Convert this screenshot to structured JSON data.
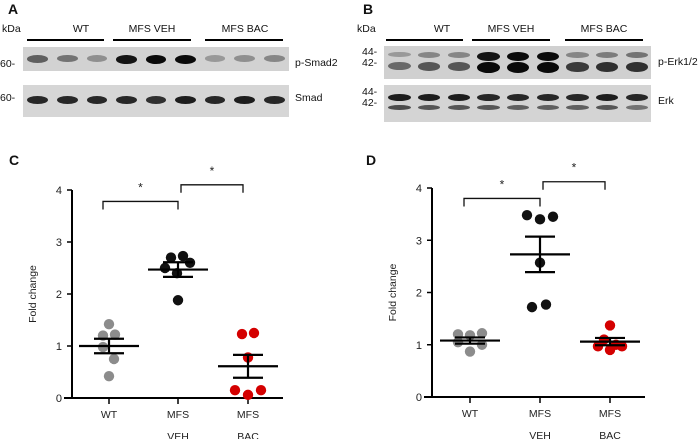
{
  "panels": {
    "A": {
      "letter": "A",
      "kda_label": "kDa",
      "groups": [
        "WT",
        "MFS VEH",
        "MFS BAC"
      ],
      "blots": [
        {
          "marker": "60-",
          "label": "p-Smad2",
          "lane_intensity": [
            0.55,
            0.45,
            0.3,
            0.95,
            1.0,
            1.0,
            0.25,
            0.3,
            0.35
          ]
        },
        {
          "marker": "60-",
          "label": "Smad",
          "lane_intensity": [
            0.85,
            0.85,
            0.85,
            0.85,
            0.8,
            0.9,
            0.85,
            0.9,
            0.85
          ]
        }
      ]
    },
    "B": {
      "letter": "B",
      "kda_label": "kDa",
      "groups": [
        "WT",
        "MFS VEH",
        "MFS BAC"
      ],
      "blots": [
        {
          "markers": [
            "44-",
            "42-"
          ],
          "label": "p-Erk1/2",
          "upper_intensity": [
            0.25,
            0.35,
            0.35,
            0.95,
            1.0,
            1.0,
            0.35,
            0.4,
            0.45
          ],
          "lower_intensity": [
            0.5,
            0.6,
            0.6,
            1.0,
            1.0,
            1.0,
            0.75,
            0.8,
            0.8
          ]
        },
        {
          "markers": [
            "44-",
            "42-"
          ],
          "label": "Erk",
          "upper_intensity": [
            0.9,
            0.9,
            0.9,
            0.85,
            0.85,
            0.85,
            0.85,
            0.9,
            0.85
          ],
          "lower_intensity": [
            0.65,
            0.6,
            0.6,
            0.6,
            0.55,
            0.55,
            0.55,
            0.6,
            0.45
          ]
        }
      ]
    },
    "C": {
      "letter": "C"
    },
    "D": {
      "letter": "D"
    }
  },
  "chart_data": [
    {
      "panel": "C",
      "type": "scatter",
      "title": "",
      "xlabel": "",
      "ylabel": "Fold change",
      "ylim": [
        0,
        4
      ],
      "yticks": [
        0,
        1,
        2,
        3,
        4
      ],
      "categories": [
        "WT",
        "MFS\nVEH",
        "MFS\nBAC"
      ],
      "category_lines": [
        [
          "WT"
        ],
        [
          "MFS",
          "VEH"
        ],
        [
          "MFS",
          "BAC"
        ]
      ],
      "colors": [
        "#8c8c8c",
        "#111111",
        "#d40000"
      ],
      "series": [
        {
          "name": "WT",
          "values": [
            1.42,
            1.2,
            1.22,
            0.98,
            0.75,
            0.42
          ],
          "mean": 1.0,
          "sem": 0.14
        },
        {
          "name": "MFS VEH",
          "values": [
            2.7,
            2.73,
            2.6,
            2.5,
            2.4,
            1.88
          ],
          "mean": 2.47,
          "sem": 0.14
        },
        {
          "name": "MFS BAC",
          "values": [
            1.23,
            1.25,
            0.78,
            0.15,
            0.15,
            0.06
          ],
          "mean": 0.61,
          "sem": 0.22
        }
      ],
      "significance": [
        {
          "from": 0,
          "to": 1,
          "label": "*",
          "y": 3.78
        },
        {
          "from": 1,
          "to": 2,
          "label": "*",
          "y": 4.1
        }
      ],
      "grid": false
    },
    {
      "panel": "D",
      "type": "scatter",
      "title": "",
      "xlabel": "",
      "ylabel": "Fold change",
      "ylim": [
        0,
        4
      ],
      "yticks": [
        0,
        1,
        2,
        3,
        4
      ],
      "categories": [
        "WT",
        "MFS\nVEH",
        "MFS\nBAC"
      ],
      "category_lines": [
        [
          "WT"
        ],
        [
          "MFS",
          "VEH"
        ],
        [
          "MFS",
          "BAC"
        ]
      ],
      "colors": [
        "#8c8c8c",
        "#111111",
        "#d40000"
      ],
      "series": [
        {
          "name": "WT",
          "values": [
            1.2,
            1.18,
            1.22,
            1.05,
            1.0,
            0.87
          ],
          "mean": 1.08,
          "sem": 0.06
        },
        {
          "name": "MFS VEH",
          "values": [
            3.48,
            3.4,
            3.45,
            2.57,
            1.72,
            1.77
          ],
          "mean": 2.73,
          "sem": 0.34
        },
        {
          "name": "MFS BAC",
          "values": [
            1.37,
            1.1,
            0.97,
            0.9,
            0.97,
            1.0
          ],
          "mean": 1.06,
          "sem": 0.07
        }
      ],
      "significance": [
        {
          "from": 0,
          "to": 1,
          "label": "*",
          "y": 3.8
        },
        {
          "from": 1,
          "to": 2,
          "label": "*",
          "y": 4.12
        }
      ],
      "grid": false
    }
  ]
}
